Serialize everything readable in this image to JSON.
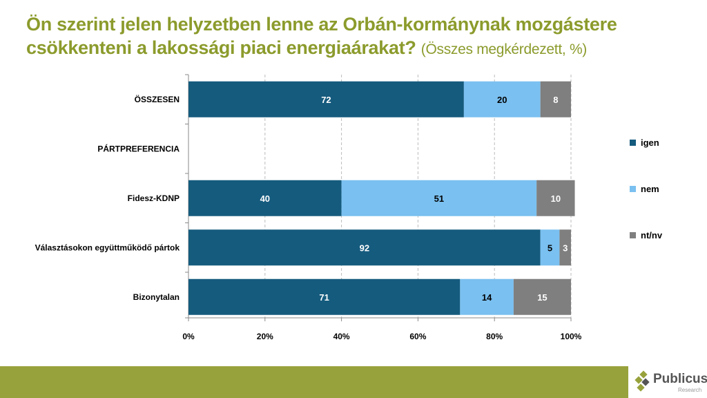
{
  "title": {
    "main": "Ön szerint jelen helyzetben lenne az Orbán-kormánynak mozgástere csökkenteni a lakossági piaci energiaárakat?",
    "sub": "(Összes megkérdezett, %)"
  },
  "logo": {
    "name": "Publicus",
    "sub": "Research"
  },
  "chart_data": {
    "type": "bar",
    "orientation": "horizontal",
    "stacked": true,
    "categories": [
      "ÖSSZESEN",
      "PÁRTPREFERENCIA",
      "Fidesz-KDNP",
      "Választásokon együttműködő pártok",
      "Bizonytalan"
    ],
    "series": [
      {
        "name": "igen",
        "color": "#155b7e",
        "values": [
          72,
          null,
          40,
          92,
          71
        ]
      },
      {
        "name": "nem",
        "color": "#7ac0f0",
        "values": [
          20,
          null,
          51,
          5,
          14
        ]
      },
      {
        "name": "nt/nv",
        "color": "#7f7f7f",
        "values": [
          8,
          null,
          10,
          3,
          15
        ]
      }
    ],
    "xlim": [
      0,
      100
    ],
    "xticks": [
      "0%",
      "20%",
      "40%",
      "60%",
      "80%",
      "100%"
    ],
    "grid": true,
    "legend": "right"
  }
}
